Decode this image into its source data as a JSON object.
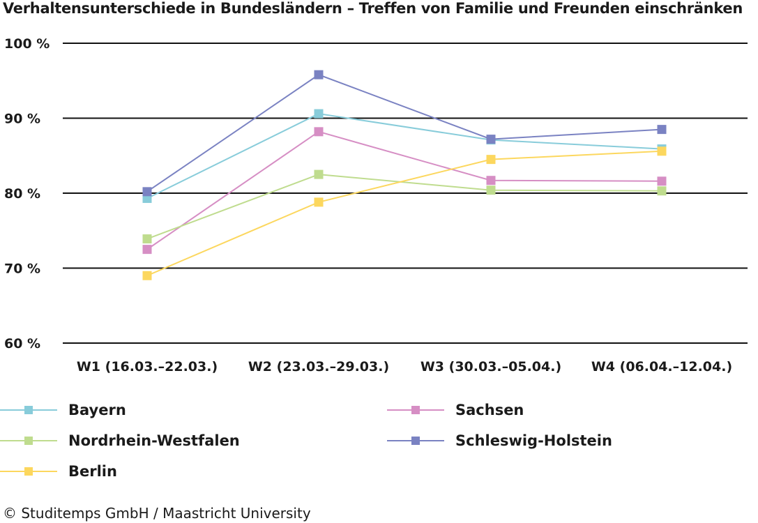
{
  "title": "Verhaltensunterschiede in Bundesländern – Treffen von Familie und Freunden einschränken",
  "chart_data": {
    "type": "line",
    "title": "Verhaltensunterschiede in Bundesländern – Treffen von Familie und Freunden einschränken",
    "xlabel": "",
    "ylabel": "",
    "categories": [
      "W1 (16.03.–22.03.)",
      "W2 (23.03.–29.03.)",
      "W3 (30.03.–05.04.)",
      "W4 (06.04.–12.04.)"
    ],
    "ylim": [
      60,
      100
    ],
    "yticks": [
      60,
      70,
      80,
      90,
      100
    ],
    "ytick_labels": [
      "60 %",
      "70 %",
      "80 %",
      "90 %",
      "100 %"
    ],
    "grid": true,
    "series": [
      {
        "name": "Bayern",
        "color": "#88ccda",
        "values": [
          79.3,
          90.6,
          87.1,
          85.9
        ]
      },
      {
        "name": "Sachsen",
        "color": "#d68ec4",
        "values": [
          72.5,
          88.2,
          81.7,
          81.6
        ]
      },
      {
        "name": "Nordrhein-Westfalen",
        "color": "#bfdc8e",
        "values": [
          73.9,
          82.5,
          80.4,
          80.3
        ]
      },
      {
        "name": "Schleswig-Holstein",
        "color": "#7a82c2",
        "values": [
          80.2,
          95.8,
          87.2,
          88.5
        ]
      },
      {
        "name": "Berlin",
        "color": "#fcd75e",
        "values": [
          69.0,
          78.8,
          84.5,
          85.6
        ]
      }
    ]
  },
  "legend": {
    "items": [
      {
        "name": "Bayern",
        "color": "#88ccda"
      },
      {
        "name": "Sachsen",
        "color": "#d68ec4"
      },
      {
        "name": "Nordrhein-Westfalen",
        "color": "#bfdc8e"
      },
      {
        "name": "Schleswig-Holstein",
        "color": "#7a82c2"
      },
      {
        "name": "Berlin",
        "color": "#fcd75e"
      }
    ]
  },
  "footer": "© Studitemps GmbH / Maastricht University"
}
